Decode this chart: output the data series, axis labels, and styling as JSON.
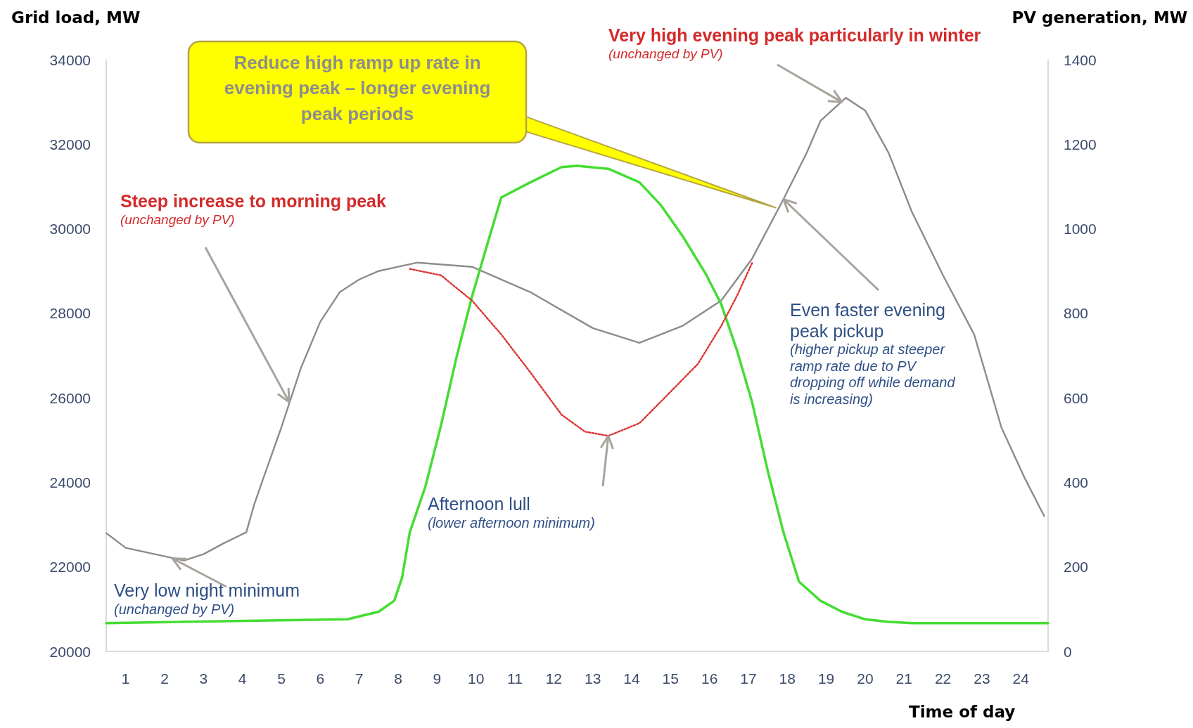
{
  "chart_data": {
    "type": "line",
    "xlabel": "Time of day",
    "ylabel": "Grid load, MW",
    "y2label": "PV generation, MW",
    "xlim": [
      0.5,
      24.7
    ],
    "xticks": [
      1,
      2,
      3,
      4,
      5,
      6,
      7,
      8,
      9,
      10,
      11,
      12,
      13,
      14,
      15,
      16,
      17,
      18,
      19,
      20,
      21,
      22,
      23,
      24
    ],
    "ylim": [
      20000,
      34000
    ],
    "yticks": [
      20000,
      22000,
      24000,
      26000,
      28000,
      30000,
      32000,
      34000
    ],
    "y2lim": [
      0,
      1400
    ],
    "y2ticks": [
      0,
      200,
      400,
      600,
      800,
      1000,
      1200,
      1400
    ],
    "grid": false,
    "marker": "none",
    "series": [
      {
        "color": "#8c8c8c",
        "line_style": "solid",
        "x": [
          0.5,
          1,
          1.5,
          2,
          2.5,
          3,
          3.5,
          4.1,
          4.3,
          4.5,
          5,
          5.5,
          6,
          6.5,
          7,
          7.5,
          8,
          8.5,
          9.9,
          11.4,
          13,
          14.2,
          15.3,
          16.3,
          17.1,
          17.9,
          18.5,
          18.85,
          19.5,
          20,
          20.6,
          21.2,
          22,
          22.8,
          23.5,
          24.1,
          24.6
        ],
        "values": [
          22800,
          22450,
          22350,
          22250,
          22150,
          22300,
          22550,
          22820,
          23470,
          24000,
          25300,
          26700,
          27800,
          28500,
          28800,
          29000,
          29100,
          29200,
          29100,
          28500,
          27650,
          27300,
          27700,
          28300,
          29300,
          30700,
          31800,
          32550,
          33100,
          32800,
          31800,
          30400,
          28900,
          27500,
          25300,
          24100,
          23200
        ]
      },
      {
        "color": "#44dd33",
        "line_style": "solid",
        "axis": "y2",
        "x": [
          0.5,
          6.7,
          7.5,
          7.9,
          8.1,
          8.3,
          8.7,
          9.1,
          9.5,
          9.9,
          10.3,
          10.65,
          11.4,
          12.2,
          12.6,
          13.4,
          14.2,
          14.75,
          15.3,
          15.9,
          16.3,
          16.7,
          17.1,
          17.5,
          17.9,
          18.3,
          18.85,
          19.4,
          20,
          20.6,
          21.2,
          24.7
        ],
        "values": [
          67,
          76,
          94,
          120,
          174,
          282,
          390,
          534,
          696,
          840,
          966,
          1074,
          1110,
          1146,
          1149,
          1142,
          1110,
          1056,
          984,
          894,
          822,
          714,
          588,
          426,
          282,
          165,
          120,
          94,
          76,
          70,
          67,
          67
        ]
      },
      {
        "color": "#dd3333",
        "line_style": "dotted",
        "x": [
          8.3,
          9.1,
          9.9,
          10.65,
          11.4,
          12.2,
          12.8,
          13.4,
          14.2,
          14.9,
          15.7,
          16.3,
          16.7,
          17.1
        ],
        "values": [
          29050,
          28900,
          28300,
          27500,
          26600,
          25600,
          25200,
          25100,
          25400,
          26050,
          26800,
          27700,
          28400,
          29200
        ]
      }
    ],
    "annotations": [
      {
        "text": "Reduce high ramp up rate in evening peak – longer evening peak periods",
        "x": 17.7,
        "y": 30500
      },
      {
        "text": "Very high evening peak particularly in winter\n(unchanged by PV)",
        "x": 19.4,
        "y": 33000
      },
      {
        "text": "Steep increase to morning peak\n(unchanged by PV)",
        "x": 5.2,
        "y": 25900
      },
      {
        "text": "Very low night minimum\n(unchanged by PV)",
        "x": 2.2,
        "y": 22200
      },
      {
        "text": "Afternoon lull\n(lower afternoon minimum)",
        "x": 13.4,
        "y": 25100
      },
      {
        "text": "Even faster evening peak pickup\n(higher pickup at steeper ramp rate due to PV dropping off while demand is increasing)",
        "x": 17.9,
        "y": 30700
      }
    ]
  }
}
